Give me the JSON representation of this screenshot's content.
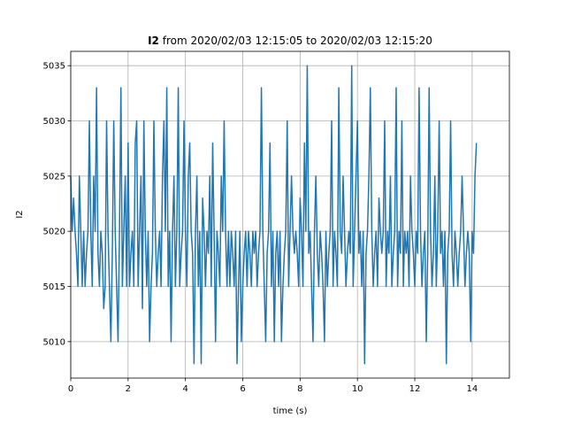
{
  "chart_data": {
    "type": "line",
    "title_bold": "I2",
    "title_rest": " from 2020/02/03 12:15:05 to 2020/02/03 12:15:20",
    "xlabel": "time (s)",
    "ylabel": "I2",
    "xlim": [
      0,
      15.3
    ],
    "ylim": [
      5006.7,
      5036.3
    ],
    "xticks": [
      0,
      2,
      4,
      6,
      8,
      10,
      12,
      14
    ],
    "xtick_labels": [
      "0",
      "2",
      "4",
      "6",
      "8",
      "10",
      "12",
      "14"
    ],
    "yticks": [
      5010,
      5015,
      5020,
      5025,
      5030,
      5035
    ],
    "ytick_labels": [
      "5010",
      "5015",
      "5020",
      "5025",
      "5030",
      "5035"
    ],
    "grid": true,
    "line_color": "#1f77b4",
    "series": [
      {
        "x_start": 0,
        "x_step": 0.05,
        "values": [
          5025,
          5020,
          5023,
          5020,
          5018,
          5015,
          5025,
          5020,
          5015,
          5020,
          5015,
          5018,
          5020,
          5030,
          5020,
          5015,
          5025,
          5020,
          5033,
          5018,
          5015,
          5020,
          5018,
          5013,
          5015,
          5030,
          5020,
          5015,
          5010,
          5018,
          5030,
          5020,
          5015,
          5010,
          5020,
          5033,
          5015,
          5020,
          5025,
          5015,
          5028,
          5015,
          5018,
          5020,
          5015,
          5028,
          5030,
          5015,
          5020,
          5025,
          5013,
          5030,
          5020,
          5015,
          5020,
          5010,
          5015,
          5018,
          5030,
          5020,
          5015,
          5018,
          5020,
          5015,
          5025,
          5030,
          5020,
          5033,
          5015,
          5020,
          5010,
          5020,
          5025,
          5015,
          5020,
          5033,
          5015,
          5018,
          5020,
          5030,
          5020,
          5015,
          5025,
          5028,
          5020,
          5018,
          5008,
          5020,
          5025,
          5015,
          5020,
          5008,
          5023,
          5020,
          5015,
          5020,
          5018,
          5025,
          5015,
          5028,
          5020,
          5010,
          5020,
          5018,
          5015,
          5025,
          5020,
          5030,
          5020,
          5015,
          5020,
          5015,
          5020,
          5018,
          5015,
          5020,
          5008,
          5015,
          5020,
          5010,
          5015,
          5018,
          5020,
          5015,
          5020,
          5018,
          5015,
          5020,
          5018,
          5020,
          5015,
          5018,
          5020,
          5033,
          5020,
          5015,
          5010,
          5018,
          5020,
          5028,
          5015,
          5020,
          5010,
          5018,
          5020,
          5015,
          5020,
          5010,
          5015,
          5018,
          5020,
          5030,
          5015,
          5020,
          5025,
          5020,
          5018,
          5020,
          5018,
          5015,
          5023,
          5020,
          5015,
          5028,
          5020,
          5035,
          5018,
          5020,
          5015,
          5010,
          5020,
          5025,
          5018,
          5015,
          5020,
          5018,
          5015,
          5010,
          5020,
          5015,
          5018,
          5020,
          5030,
          5015,
          5020,
          5018,
          5015,
          5033,
          5020,
          5018,
          5025,
          5020,
          5015,
          5018,
          5020,
          5018,
          5035,
          5015,
          5020,
          5025,
          5030,
          5018,
          5020,
          5015,
          5020,
          5008,
          5018,
          5020,
          5025,
          5033,
          5020,
          5015,
          5018,
          5020,
          5015,
          5023,
          5020,
          5018,
          5020,
          5030,
          5015,
          5020,
          5018,
          5025,
          5015,
          5018,
          5020,
          5033,
          5015,
          5020,
          5018,
          5030,
          5015,
          5020,
          5018,
          5020,
          5015,
          5025,
          5020,
          5018,
          5015,
          5020,
          5018,
          5033,
          5020,
          5015,
          5018,
          5020,
          5010,
          5018,
          5033,
          5020,
          5015,
          5018,
          5025,
          5015,
          5020,
          5030,
          5018,
          5020,
          5015,
          5020,
          5008,
          5018,
          5020,
          5030,
          5018,
          5015,
          5020,
          5018,
          5015,
          5018,
          5020,
          5025,
          5020,
          5015,
          5018,
          5020,
          5018,
          5010,
          5020,
          5018,
          5025,
          5028
        ]
      }
    ]
  }
}
